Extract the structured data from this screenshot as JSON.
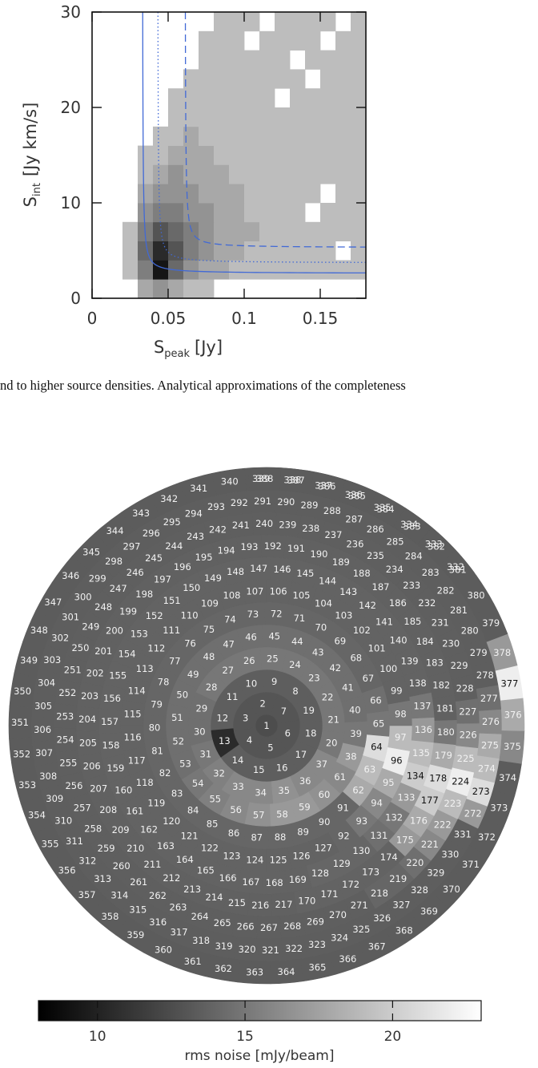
{
  "text_line": "nd to higher source densities. Analytical approximations of the completeness",
  "chart_data": [
    {
      "type": "heatmap",
      "xlabel": {
        "main": "S",
        "sub": "peak",
        "unit": "[Jy]"
      },
      "ylabel": {
        "main": "S",
        "sub": "int",
        "unit": "[Jy km/s]"
      },
      "xlim": [
        0,
        0.18
      ],
      "ylim": [
        0,
        30
      ],
      "xticks": [
        0,
        0.05,
        0.1,
        0.15
      ],
      "yticks": [
        0,
        10,
        20,
        30
      ],
      "x_bins": [
        0.02,
        0.03,
        0.04,
        0.05,
        0.06,
        0.07,
        0.08,
        0.09,
        0.1,
        0.11,
        0.12,
        0.13,
        0.14,
        0.15,
        0.16,
        0.17,
        0.18
      ],
      "y_bins": [
        0,
        2,
        4,
        6,
        8,
        10,
        12,
        14,
        16,
        18,
        20,
        22,
        24,
        26,
        28,
        30
      ],
      "density": [
        [
          0,
          2,
          3,
          2,
          1,
          1,
          0,
          0,
          0,
          0,
          0,
          0,
          0,
          0,
          0,
          0
        ],
        [
          1,
          4,
          9,
          5,
          3,
          2,
          2,
          1,
          1,
          1,
          1,
          1,
          1,
          1,
          1,
          1
        ],
        [
          1,
          5,
          8,
          6,
          4,
          3,
          2,
          2,
          1,
          1,
          1,
          1,
          1,
          1,
          0,
          1
        ],
        [
          1,
          4,
          6,
          5,
          4,
          3,
          2,
          2,
          2,
          1,
          1,
          1,
          1,
          1,
          1,
          1
        ],
        [
          0,
          3,
          4,
          4,
          3,
          3,
          2,
          2,
          1,
          1,
          1,
          1,
          0,
          1,
          1,
          1
        ],
        [
          0,
          2,
          3,
          3,
          3,
          2,
          2,
          2,
          1,
          1,
          1,
          1,
          1,
          0,
          1,
          1
        ],
        [
          0,
          1,
          2,
          3,
          2,
          2,
          2,
          1,
          1,
          1,
          1,
          1,
          1,
          1,
          1,
          1
        ],
        [
          0,
          1,
          1,
          2,
          2,
          2,
          1,
          1,
          1,
          1,
          1,
          1,
          1,
          1,
          1,
          1
        ],
        [
          0,
          0,
          1,
          1,
          2,
          1,
          1,
          1,
          1,
          1,
          1,
          1,
          1,
          1,
          1,
          1
        ],
        [
          0,
          0,
          0,
          1,
          1,
          1,
          1,
          1,
          1,
          1,
          1,
          1,
          1,
          1,
          1,
          1
        ],
        [
          0,
          0,
          0,
          1,
          1,
          1,
          1,
          1,
          1,
          1,
          0,
          1,
          1,
          1,
          1,
          1
        ],
        [
          0,
          0,
          0,
          0,
          1,
          1,
          1,
          1,
          1,
          1,
          1,
          1,
          0,
          1,
          1,
          1
        ],
        [
          0,
          0,
          0,
          0,
          0,
          1,
          1,
          1,
          1,
          1,
          1,
          0,
          1,
          1,
          1,
          1
        ],
        [
          0,
          0,
          0,
          0,
          0,
          1,
          1,
          1,
          0,
          1,
          1,
          1,
          1,
          0,
          1,
          1
        ],
        [
          0,
          0,
          0,
          0,
          0,
          0,
          1,
          1,
          1,
          0,
          1,
          1,
          1,
          1,
          0,
          1
        ]
      ],
      "curves": [
        {
          "style": "solid",
          "color": "#4169d6",
          "x0": 0.033,
          "y0": 2.6
        },
        {
          "style": "dotted",
          "color": "#4169d6",
          "x0": 0.043,
          "y0": 3.7
        },
        {
          "style": "dashed",
          "color": "#4169d6",
          "x0": 0.061,
          "y0": 5.3
        }
      ]
    },
    {
      "type": "tile_map",
      "rings": [
        {
          "labels": [
            1
          ],
          "noise": [
            12.5
          ]
        },
        {
          "labels": [
            2,
            3,
            4,
            5,
            6,
            7
          ],
          "noise": [
            13,
            13,
            13,
            13,
            13,
            13
          ]
        },
        {
          "labels": [
            8,
            9,
            10,
            11,
            12,
            13,
            14,
            15,
            16,
            17,
            18,
            19
          ],
          "noise": [
            13.5,
            13.5,
            13.5,
            13.5,
            13.5,
            10.5,
            13.5,
            13.5,
            13.5,
            13.5,
            13.5,
            13.5
          ]
        },
        {
          "labels": [
            20,
            21,
            22,
            23,
            24,
            25,
            26,
            27,
            28,
            29,
            30,
            31,
            32,
            33,
            34,
            35,
            36,
            37
          ],
          "noise": [
            15,
            15,
            15,
            15,
            15,
            15,
            15,
            15,
            15,
            14.5,
            14.5,
            15,
            15.5,
            16,
            16,
            16.5,
            16,
            16
          ]
        },
        {
          "labels": [
            38,
            39,
            40,
            41,
            42,
            43,
            44,
            45,
            46,
            47,
            48,
            49,
            50,
            51,
            52,
            53,
            54,
            55,
            56,
            57,
            58,
            59,
            60,
            61
          ],
          "noise": [
            17,
            15,
            14.5,
            14.5,
            14.5,
            14.5,
            14.5,
            14.5,
            14.5,
            14.5,
            14.5,
            14.5,
            14.5,
            14.5,
            14.5,
            14.5,
            15,
            15.5,
            16,
            16.5,
            17,
            17,
            16.5,
            16
          ]
        },
        {
          "labels": [
            62,
            63,
            64,
            65,
            66,
            67,
            68,
            69,
            70,
            71,
            72,
            73,
            74,
            75,
            76,
            77,
            78,
            79,
            80,
            81,
            82,
            83,
            84,
            85,
            86,
            87,
            88,
            89,
            90,
            91
          ],
          "noise": [
            18,
            19,
            21,
            15,
            14.5,
            14,
            14,
            14,
            14,
            14,
            14,
            14,
            14,
            14,
            14,
            14,
            14,
            14,
            14,
            14,
            14,
            14,
            14,
            14,
            14,
            14,
            14,
            14,
            14,
            14
          ]
        },
        {
          "labels": [
            92,
            93,
            94,
            95,
            96,
            97,
            98,
            99,
            100,
            101,
            102,
            103,
            104,
            105,
            106,
            107,
            108,
            109,
            110,
            111,
            112,
            113,
            114,
            115,
            116,
            117,
            118,
            119,
            120,
            121,
            122,
            123,
            124,
            125,
            126,
            127
          ],
          "noise": [
            14,
            15,
            16,
            18,
            22,
            19,
            15,
            13.8,
            13.8,
            13.8,
            13.8,
            13.8,
            13.8,
            13.8,
            13.8,
            13.8,
            13.8,
            13.8,
            13.8,
            13.8,
            13.8,
            13.8,
            13.8,
            13.8,
            13.8,
            13.8,
            13.8,
            13.8,
            13.8,
            13.8,
            13.8,
            13.8,
            13.8,
            13.8,
            13.8,
            13.8
          ]
        },
        {
          "labels": [
            128,
            129,
            130,
            131,
            132,
            133,
            134,
            135,
            136,
            137,
            138,
            139,
            140,
            141,
            142,
            143,
            144,
            145,
            146,
            147,
            148,
            149,
            150,
            151,
            152,
            153,
            154,
            155,
            156,
            157,
            158,
            159,
            160,
            161,
            162,
            163,
            164,
            165,
            166,
            167,
            168,
            169
          ],
          "noise": [
            14,
            14,
            14,
            14.5,
            15,
            17,
            20,
            19,
            17,
            15,
            13.8,
            13.8,
            13.8,
            13.8,
            13.8,
            13.8,
            13.8,
            13.8,
            13.8,
            13.8,
            13.8,
            13.8,
            13.8,
            13.8,
            13.8,
            13.8,
            13.8,
            13.8,
            13.8,
            13.8,
            13.8,
            13.8,
            13.8,
            13.8,
            13.8,
            13.8,
            13.8,
            13.8,
            13.8,
            13.8,
            13.8,
            13.8
          ]
        },
        {
          "labels": [
            170,
            171,
            172,
            173,
            174,
            175,
            176,
            177,
            178,
            179,
            180,
            181,
            182,
            183,
            184,
            185,
            186,
            187,
            188,
            189,
            190,
            191,
            192,
            193,
            194,
            195,
            196,
            197,
            198,
            199,
            200,
            201,
            202,
            203,
            204,
            205,
            206,
            207,
            208,
            209,
            210,
            211,
            212,
            213,
            214,
            215,
            216,
            217
          ],
          "noise": [
            13.8,
            13.8,
            13.8,
            13.8,
            13.8,
            17,
            18,
            20,
            21,
            18,
            15,
            13.7,
            13.7,
            13.7,
            13.7,
            13.7,
            13.7,
            13.7,
            13.7,
            13.7,
            13.7,
            13.7,
            13.7,
            13.7,
            13.7,
            13.7,
            13.7,
            13.7,
            13.7,
            13.7,
            13.7,
            13.7,
            13.7,
            13.7,
            13.7,
            13.7,
            13.7,
            13.7,
            13.7,
            13.7,
            13.7,
            13.7,
            13.7,
            13.7,
            13.7,
            13.7,
            13.7,
            13.7
          ]
        },
        {
          "labels": [
            218,
            219,
            220,
            221,
            222,
            223,
            224,
            225,
            226,
            227,
            228,
            229,
            230,
            231,
            232,
            233,
            234,
            235,
            236,
            237,
            238,
            239,
            240,
            241,
            242,
            243,
            244,
            245,
            246,
            247,
            248,
            249,
            250,
            251,
            252,
            253,
            254,
            255,
            256,
            257,
            258,
            259,
            260,
            261,
            262,
            263,
            264,
            265,
            266,
            267,
            268,
            269,
            270,
            271
          ],
          "noise": [
            14,
            14,
            14.5,
            16,
            17,
            19,
            22,
            19,
            16,
            14.5,
            13.6,
            13.6,
            13.6,
            13.6,
            13.6,
            13.6,
            13.6,
            13.6,
            13.6,
            13.6,
            13.6,
            13.6,
            13.6,
            13.6,
            13.6,
            13.6,
            13.6,
            13.6,
            13.6,
            13.6,
            13.6,
            13.6,
            13.6,
            13.6,
            13.6,
            13.6,
            13.6,
            13.6,
            13.6,
            13.6,
            13.6,
            13.6,
            13.6,
            13.6,
            13.6,
            13.6,
            13.6,
            13.6,
            13.6,
            13.6,
            13.6,
            13.6,
            13.6,
            13.6
          ]
        },
        {
          "labels": [
            272,
            273,
            274,
            275,
            276,
            277,
            278,
            279,
            280,
            281,
            282,
            283,
            284,
            285,
            286,
            287,
            288,
            289,
            290,
            291,
            292,
            293,
            294,
            295,
            296,
            297,
            298,
            299,
            300,
            301,
            302,
            303,
            304,
            305,
            306,
            307,
            308,
            309,
            310,
            311,
            312,
            313,
            314,
            315,
            316,
            317,
            318,
            319,
            320,
            321,
            322,
            323,
            324,
            325,
            326,
            327,
            328,
            329,
            330,
            331
          ],
          "noise": [
            17,
            21,
            19,
            18,
            16,
            14.5,
            13.5,
            13.5,
            13.5,
            13.5,
            13.5,
            13.5,
            13.5,
            13.5,
            13.5,
            13.5,
            13.5,
            13.5,
            13.5,
            13.5,
            13.5,
            13.5,
            13.5,
            13.5,
            13.5,
            13.5,
            13.5,
            13.5,
            13.5,
            13.5,
            13.5,
            13.5,
            13.5,
            13.5,
            13.5,
            13.5,
            13.5,
            13.5,
            13.5,
            13.5,
            13.5,
            13.5,
            13.5,
            13.5,
            13.5,
            13.5,
            13.5,
            13.5,
            13.5,
            13.5,
            13.5,
            13.5,
            13.5,
            13.5,
            13.5,
            13.5,
            13.5,
            13.5,
            13.5,
            13.5
          ]
        },
        {
          "labels": [
            332,
            333,
            334,
            335,
            336,
            337,
            338,
            339,
            340,
            341,
            342,
            343,
            344,
            345,
            346,
            347,
            348,
            349,
            350,
            351,
            352,
            353,
            354,
            355,
            356,
            357,
            358,
            359,
            360,
            361,
            362,
            363,
            364,
            365,
            366,
            367,
            368,
            369,
            370,
            371,
            372,
            373,
            374,
            375,
            376,
            377,
            378,
            379,
            380,
            381,
            382,
            383,
            384,
            385,
            386,
            387,
            388
          ],
          "noise": [
            13.4,
            13.4,
            13.4,
            13.4,
            13.4,
            13.4,
            13.4,
            13.4,
            13.4,
            13.4,
            13.4,
            13.4,
            13.4,
            13.4,
            13.4,
            13.4,
            13.4,
            13.4,
            13.4,
            13.4,
            13.4,
            13.4,
            13.4,
            13.4,
            13.4,
            13.4,
            13.4,
            13.4,
            13.4,
            13.4,
            13.4,
            13.4,
            13.4,
            13.4,
            13.4,
            13.4,
            13.4,
            13.4,
            13.4,
            13.4,
            13.4,
            13.4,
            13.4,
            16,
            18,
            22,
            17,
            13.4,
            13.4,
            13.4,
            13.4,
            13.4,
            13.4,
            13.4,
            13.4,
            13.4,
            13.4
          ]
        }
      ],
      "colorbar": {
        "label": "rms noise [mJy/beam]",
        "clim": [
          8,
          23
        ],
        "ticks": [
          10,
          15,
          20
        ]
      }
    }
  ]
}
